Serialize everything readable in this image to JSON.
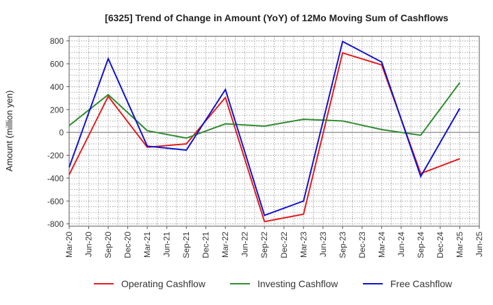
{
  "chart_data": {
    "type": "line",
    "title": "[6325]  Trend of Change in Amount (YoY) of 12Mo Moving Sum of Cashflows",
    "xlabel": "",
    "ylabel": "Amount (million yen)",
    "ylim": [
      -820,
      840
    ],
    "yticks": [
      -800,
      -600,
      -400,
      -200,
      0,
      200,
      400,
      600,
      800
    ],
    "grid": true,
    "legend_position": "bottom",
    "categories": [
      "Mar-20",
      "Jun-20",
      "Sep-20",
      "Dec-20",
      "Mar-21",
      "Jun-21",
      "Sep-21",
      "Dec-21",
      "Mar-22",
      "Jun-22",
      "Sep-22",
      "Dec-22",
      "Mar-23",
      "Jun-23",
      "Sep-23",
      "Dec-23",
      "Mar-24",
      "Jun-24",
      "Sep-24",
      "Dec-24",
      "Mar-25",
      "Jun-25"
    ],
    "series": [
      {
        "name": "Operating Cashflow",
        "color": "#e31a1c",
        "values": [
          -370,
          null,
          315,
          null,
          -130,
          null,
          -100,
          null,
          305,
          null,
          -780,
          null,
          -715,
          null,
          695,
          null,
          590,
          null,
          -360,
          null,
          -230,
          null
        ]
      },
      {
        "name": "Investing Cashflow",
        "color": "#2e8b2e",
        "values": [
          60,
          null,
          330,
          null,
          15,
          null,
          -50,
          null,
          75,
          null,
          55,
          null,
          115,
          null,
          100,
          null,
          25,
          null,
          -25,
          null,
          435,
          null
        ]
      },
      {
        "name": "Free Cashflow",
        "color": "#1010d0",
        "values": [
          -305,
          null,
          645,
          null,
          -120,
          null,
          -155,
          null,
          375,
          null,
          -725,
          null,
          -600,
          null,
          795,
          null,
          615,
          null,
          -385,
          null,
          210,
          null
        ]
      }
    ]
  }
}
